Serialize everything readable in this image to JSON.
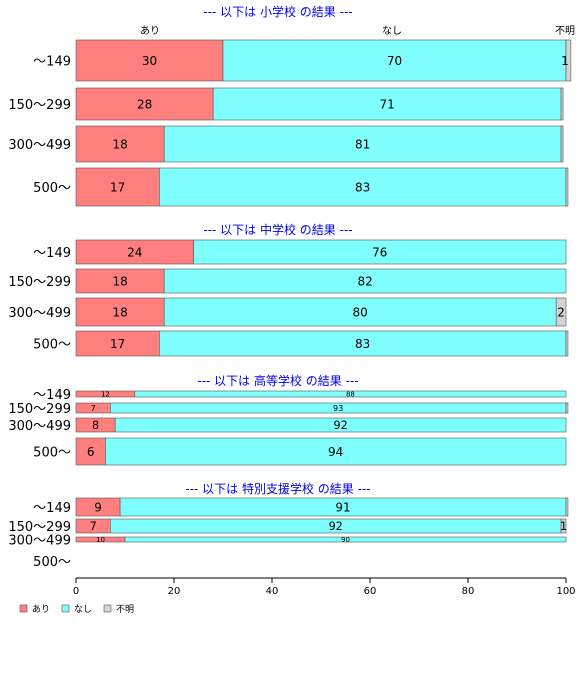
{
  "colors": {
    "あり": "#ff7f7f",
    "なし": "#80ffff",
    "不明": "#d3d3d3",
    "title": "#0000ee"
  },
  "legend": [
    "あり",
    "なし",
    "不明"
  ],
  "chart_data": {
    "type": "bar",
    "orientation": "horizontal",
    "stacked": true,
    "xlim": [
      0,
      100
    ],
    "xticks": [
      0,
      20,
      40,
      60,
      80,
      100
    ],
    "top_category_labels": [
      "あり",
      "なし",
      "不明"
    ],
    "groups": [
      {
        "title": "--- 以下は 小学校 の結果 ---",
        "categories": [
          "～149",
          "150～299",
          "300～499",
          "500～"
        ],
        "series": [
          {
            "name": "あり",
            "values": [
              30,
              28,
              18,
              17
            ]
          },
          {
            "name": "なし",
            "values": [
              70,
              71,
              81,
              83
            ]
          },
          {
            "name": "不明",
            "values": [
              1,
              0.4,
              0.4,
              0.4
            ]
          }
        ],
        "labels": [
          [
            "30",
            "70",
            "1"
          ],
          [
            "28",
            "71",
            ""
          ],
          [
            "18",
            "81",
            ""
          ],
          [
            "17",
            "83",
            ""
          ]
        ]
      },
      {
        "title": "--- 以下は 中学校 の結果 ---",
        "categories": [
          "～149",
          "150～299",
          "300～499",
          "500～"
        ],
        "series": [
          {
            "name": "あり",
            "values": [
              24,
              18,
              18,
              17
            ]
          },
          {
            "name": "なし",
            "values": [
              76,
              82,
              80,
              83
            ]
          },
          {
            "name": "不明",
            "values": [
              0,
              0,
              2,
              0.4
            ]
          }
        ],
        "labels": [
          [
            "24",
            "76",
            ""
          ],
          [
            "18",
            "82",
            ""
          ],
          [
            "18",
            "80",
            "2"
          ],
          [
            "17",
            "83",
            ""
          ]
        ]
      },
      {
        "title": "--- 以下は 高等学校 の結果 ---",
        "categories": [
          "～149",
          "150～299",
          "300～499",
          "500～"
        ],
        "series": [
          {
            "name": "あり",
            "values": [
              12,
              7,
              8,
              6
            ]
          },
          {
            "name": "なし",
            "values": [
              88,
              93,
              92,
              94
            ]
          },
          {
            "name": "不明",
            "values": [
              0,
              0.4,
              0,
              0
            ]
          }
        ],
        "labels": [
          [
            "12",
            "88",
            ""
          ],
          [
            "7",
            "93",
            ""
          ],
          [
            "8",
            "92",
            ""
          ],
          [
            "6",
            "94",
            ""
          ]
        ]
      },
      {
        "title": "--- 以下は 特別支援学校 の結果 ---",
        "categories": [
          "～149",
          "150～299",
          "300～499",
          "500～"
        ],
        "series": [
          {
            "name": "あり",
            "values": [
              9,
              7,
              10,
              0
            ]
          },
          {
            "name": "なし",
            "values": [
              91,
              92,
              90,
              0
            ]
          },
          {
            "name": "不明",
            "values": [
              0.4,
              1,
              0,
              0
            ]
          }
        ],
        "labels": [
          [
            "9",
            "91",
            ""
          ],
          [
            "7",
            "92",
            "1"
          ],
          [
            "10",
            "90",
            ""
          ],
          [
            "",
            "",
            ""
          ]
        ]
      }
    ]
  }
}
